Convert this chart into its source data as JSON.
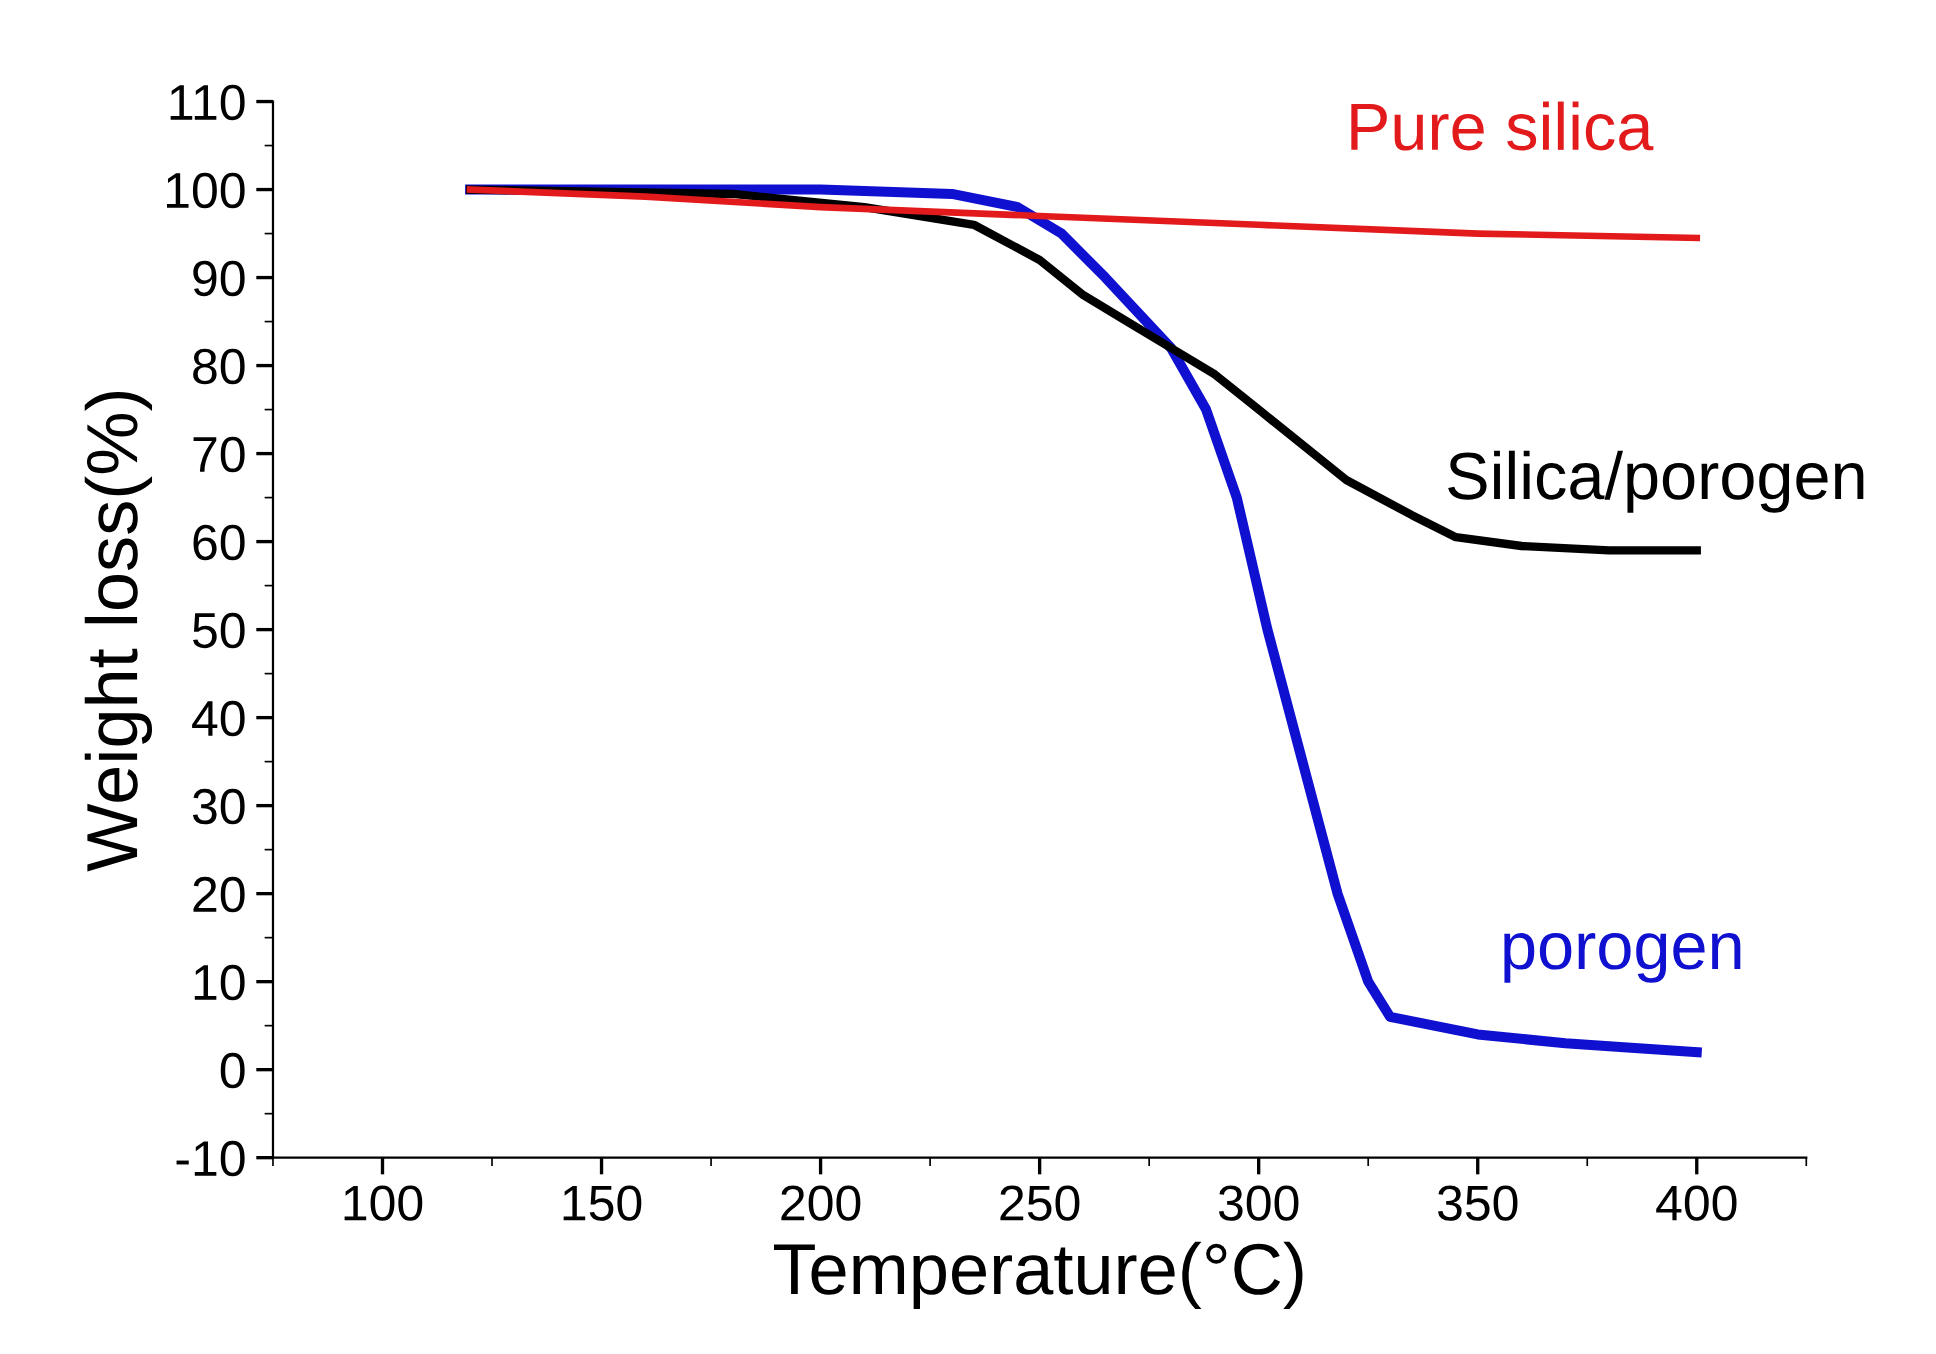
{
  "chart_data": {
    "type": "line",
    "xlabel": "Temperature(°C)",
    "ylabel": "Weight loss(%)",
    "xlim": [
      75,
      425
    ],
    "ylim": [
      -10,
      110
    ],
    "xticks": [
      100,
      150,
      200,
      250,
      300,
      350,
      400
    ],
    "yticks": [
      -10,
      0,
      10,
      20,
      30,
      40,
      50,
      60,
      70,
      80,
      90,
      100,
      110
    ],
    "grid": false,
    "legend": false,
    "marker": "none",
    "line_style": "solid",
    "series": [
      {
        "name": "Pure silica",
        "color": "#e31a1c",
        "x": [
          120,
          160,
          200,
          250,
          300,
          350,
          400
        ],
        "values": [
          100,
          99.2,
          98,
          97,
          96,
          95,
          94.5
        ]
      },
      {
        "name": "Silica/porogen",
        "color": "#000000",
        "x": [
          120,
          180,
          210,
          235,
          250,
          260,
          270,
          280,
          290,
          300,
          310,
          320,
          335,
          345,
          360,
          380,
          400
        ],
        "values": [
          100,
          99.5,
          98,
          96,
          92,
          88,
          85,
          82,
          79,
          75,
          71,
          67,
          63,
          60.5,
          59.5,
          59,
          59
        ]
      },
      {
        "name": "porogen",
        "color": "#1010d0",
        "x": [
          120,
          200,
          230,
          245,
          255,
          265,
          280,
          288,
          295,
          302,
          310,
          318,
          325,
          330,
          340,
          350,
          370,
          385,
          400
        ],
        "values": [
          100,
          100,
          99.5,
          98,
          95,
          90,
          82,
          75,
          65,
          50,
          35,
          20,
          10,
          6,
          5,
          4,
          3,
          2.5,
          2
        ]
      }
    ]
  }
}
